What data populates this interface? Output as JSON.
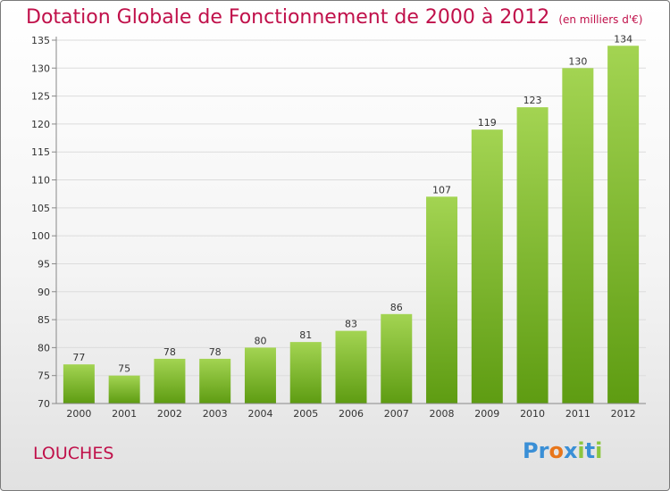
{
  "title": "Dotation Globale de Fonctionnement de 2000 à 2012",
  "subtitle": "(en milliers d'€)",
  "commune": "LOUCHES",
  "logo": {
    "text": "Proxiti",
    "letters": [
      "P",
      "r",
      "o",
      "x",
      "i",
      "t",
      "i"
    ],
    "colors": [
      "#3a8fd6",
      "#3a8fd6",
      "#e8761b",
      "#3a8fd6",
      "#8cc63f",
      "#3a8fd6",
      "#8cc63f"
    ]
  },
  "colors": {
    "title": "#c0104a",
    "bar_top": "#a3d452",
    "bar_bottom": "#5e9c12"
  },
  "chart_data": {
    "type": "bar",
    "title": "Dotation Globale de Fonctionnement de 2000 à 2012",
    "subtitle": "(en milliers d'€)",
    "categories": [
      "2000",
      "2001",
      "2002",
      "2003",
      "2004",
      "2005",
      "2006",
      "2007",
      "2008",
      "2009",
      "2010",
      "2011",
      "2012"
    ],
    "values": [
      77,
      75,
      78,
      78,
      80,
      81,
      83,
      86,
      107,
      119,
      123,
      130,
      134
    ],
    "ylim": [
      70,
      135
    ],
    "yticks": [
      70,
      75,
      80,
      85,
      90,
      95,
      100,
      105,
      110,
      115,
      120,
      125,
      130,
      135
    ],
    "grid": true,
    "legend": "none"
  }
}
